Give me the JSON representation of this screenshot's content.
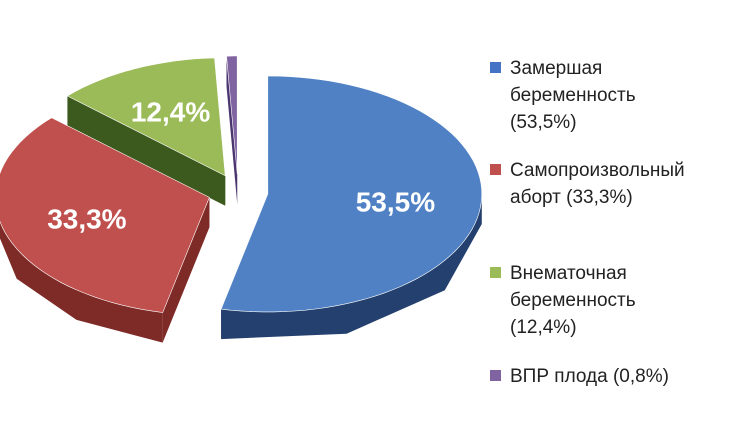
{
  "chart_data": {
    "type": "pie",
    "categories": [
      "Замершая беременность",
      "Самопроизвольный аборт",
      "Внематочная беременность",
      "ВПР плода"
    ],
    "values": [
      53.5,
      33.3,
      12.4,
      0.8
    ],
    "data_labels": [
      "53,5%",
      "33,3%",
      "12,4%",
      ""
    ],
    "legend": [
      {
        "label": "Замершая\nбеременность\n(53,5%)",
        "color": "#4472c4"
      },
      {
        "label": "Самопроизвольный\nаборт (33,3%)",
        "color": "#c0504d"
      },
      {
        "label": "Внематочная\nбеременность\n(12,4%)",
        "color": "#9bbb59"
      },
      {
        "label": "ВПР плода (0,8%)",
        "color": "#8064a2"
      }
    ],
    "colors": {
      "top": [
        "#4f81c4",
        "#c0504d",
        "#9bbb59",
        "#8064a2"
      ],
      "side": [
        "#24406e",
        "#7e2a27",
        "#3c5a1e",
        "#4b3670"
      ]
    },
    "legend_position": "right",
    "style": "3d-exploded-pie"
  }
}
